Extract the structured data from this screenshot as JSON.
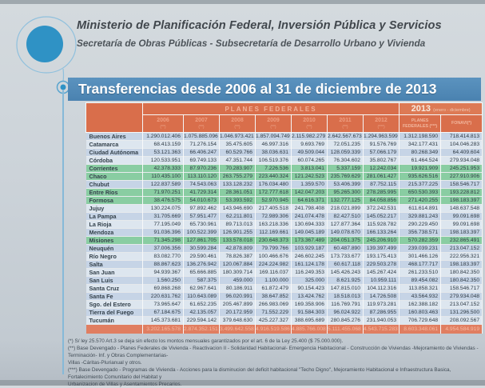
{
  "header": {
    "ministry": "Ministerio de Planificación Federal, Inversión Pública y Servicios",
    "secretariat": "Secretaría de Obras Públicas - Subsecretaría de Desarrollo Urbano y Vivienda"
  },
  "banner": {
    "title": "Transferencias desde 2006 al 31 de diciembre de 2013"
  },
  "colors": {
    "banner_blue": "#4a82b0",
    "table_header_salmon": "#d96e4b",
    "highlight_green": "#89cda2",
    "stripe_blue": "#c6d4e6",
    "stripe_light": "#dde6ef",
    "total_row": "#e07e61",
    "logo_blue": "#2f92c5"
  },
  "table": {
    "group_federal": "PLANES FEDERALES",
    "group_2013_year": "2013",
    "group_2013_range": "(enero - diciembre)",
    "years": [
      {
        "label": "2006",
        "note": "(**)"
      },
      {
        "label": "2007",
        "note": "(**)"
      },
      {
        "label": "2008",
        "note": "(**)"
      },
      {
        "label": "2009",
        "note": "(**)"
      },
      {
        "label": "2010",
        "note": "(**)"
      },
      {
        "label": "2011",
        "note": "(**)"
      },
      {
        "label": "2012",
        "note": "(***)"
      }
    ],
    "cols_2013": [
      "PLANES FEDERALES (***)",
      "FONAVI(*)"
    ],
    "rows": [
      {
        "name": "Buenos Aires",
        "highlight": false,
        "values": [
          "1.290.012.406",
          "1.075.885.096",
          "1.046.973.421",
          "1.857.094.749",
          "2.115.982.279",
          "2.642.567.673",
          "1.294.963.599",
          "1.312.198.590",
          "718.414.813"
        ]
      },
      {
        "name": "Catamarca",
        "highlight": false,
        "values": [
          "68.413.159",
          "71.276.154",
          "35.475.605",
          "46.997.316",
          "9.693.769",
          "72.051.235",
          "91.576.769",
          "342.177.431",
          "104.046.283"
        ]
      },
      {
        "name": "Ciudad Autónoma",
        "highlight": false,
        "values": [
          "53.121.363",
          "66.406.247",
          "60.529.766",
          "38.036.631",
          "49.509.044",
          "128.059.339",
          "57.066.179",
          "80.268.349",
          "64.409.604"
        ]
      },
      {
        "name": "Córdoba",
        "highlight": false,
        "values": [
          "120.533.951",
          "69.749.133",
          "47.351.744",
          "106.519.376",
          "60.074.265",
          "76.304.602",
          "35.802.767",
          "61.464.524",
          "279.934.048"
        ]
      },
      {
        "name": "Corrientes",
        "highlight": true,
        "values": [
          "42.378.333",
          "87.970.236",
          "70.283.907",
          "7.226.536",
          "3.813.041",
          "5.337.159",
          "12.242.034",
          "19.921.909",
          "245.251.953"
        ]
      },
      {
        "name": "Chaco",
        "highlight": true,
        "values": [
          "110.435.100",
          "113.110.120",
          "263.755.279",
          "223.440.324",
          "121.242.523",
          "235.769.629",
          "281.061.427",
          "935.626.516",
          "227.910.906"
        ]
      },
      {
        "name": "Chubut",
        "highlight": false,
        "values": [
          "122.837.589",
          "74.543.063",
          "133.128.232",
          "176.034.480",
          "1.359.570",
          "53.406.399",
          "87.752.115",
          "215.377.225",
          "158.546.717"
        ]
      },
      {
        "name": "Entre Ríos",
        "highlight": true,
        "values": [
          "71.970.251",
          "41.729.314",
          "28.361.051",
          "172.777.618",
          "142.047.203",
          "95.265.300",
          "278.285.995",
          "650.530.393",
          "193.228.812"
        ]
      },
      {
        "name": "Formosa",
        "highlight": true,
        "values": [
          "38.476.575",
          "54.010.673",
          "53.393.592",
          "52.970.945",
          "64.616.371",
          "132.777.125",
          "84.058.856",
          "271.420.255",
          "198.183.397"
        ]
      },
      {
        "name": "Jujuy",
        "highlight": false,
        "values": [
          "130.224.075",
          "97.892.462",
          "143.946.690",
          "217.405.518",
          "241.798.408",
          "218.021.899",
          "372.242.531",
          "611.614.891",
          "148.637.548"
        ]
      },
      {
        "name": "La Pampa",
        "highlight": false,
        "values": [
          "31.705.669",
          "57.951.477",
          "62.211.801",
          "72.989.306",
          "241.074.478",
          "82.427.510",
          "145.052.217",
          "329.881.243",
          "99.091.698"
        ]
      },
      {
        "name": "La Rioja",
        "highlight": false,
        "values": [
          "77.195.049",
          "65.730.961",
          "89.713.013",
          "163.218.336",
          "130.694.333",
          "127.877.364",
          "115.928.782",
          "290.229.450",
          "99.091.698"
        ]
      },
      {
        "name": "Mendoza",
        "highlight": false,
        "values": [
          "91.036.396",
          "100.522.399",
          "126.901.255",
          "112.169.661",
          "149.045.189",
          "149.078.670",
          "166.133.264",
          "356.738.571",
          "198.183.397"
        ]
      },
      {
        "name": "Misiones",
        "highlight": true,
        "values": [
          "71.345.298",
          "127.861.705",
          "133.578.018",
          "230.648.373",
          "173.367.489",
          "204.051.375",
          "245.206.910",
          "570.282.359",
          "232.865.491"
        ]
      },
      {
        "name": "Neuquén",
        "highlight": false,
        "values": [
          "37.006.356",
          "30.599.284",
          "42.878.809",
          "79.799.766",
          "103.929.187",
          "60.487.890",
          "139.397.499",
          "239.039.231",
          "213.047.152"
        ]
      },
      {
        "name": "Río Negro",
        "highlight": false,
        "values": [
          "83.082.770",
          "29.590.461",
          "78.826.387",
          "100.466.676",
          "246.602.245",
          "173.733.677",
          "193.175.413",
          "301.466.126",
          "222.956.321"
        ]
      },
      {
        "name": "Salta",
        "highlight": false,
        "values": [
          "88.867.623",
          "136.276.942",
          "120.067.884",
          "224.224.982",
          "161.124.178",
          "60.617.118",
          "229.503.278",
          "468.177.717",
          "198.183.397"
        ]
      },
      {
        "name": "San Juan",
        "highlight": false,
        "values": [
          "94.939.367",
          "65.666.885",
          "180.309.714",
          "169.116.037",
          "116.249.353",
          "145.426.243",
          "145.267.424",
          "261.233.510",
          "180.842.350"
        ]
      },
      {
        "name": "San Luis",
        "highlight": false,
        "values": [
          "1.560.250",
          "587.375",
          "459.000",
          "1.100.000",
          "325.000",
          "8.621.925",
          "10.959.111",
          "89.454.082",
          "180.842.350"
        ]
      },
      {
        "name": "Santa Cruz",
        "highlight": false,
        "values": [
          "69.868.268",
          "62.967.641",
          "80.186.911",
          "61.872.479",
          "90.154.423",
          "147.815.010",
          "104.112.316",
          "113.858.321",
          "158.546.717"
        ]
      },
      {
        "name": "Santa Fe",
        "highlight": false,
        "values": [
          "220.631.762",
          "110.643.089",
          "96.020.991",
          "38.647.852",
          "13.424.762",
          "18.518.013",
          "14.726.508",
          "43.564.932",
          "279.934.048"
        ]
      },
      {
        "name": "Sgo. del Estero",
        "highlight": false,
        "values": [
          "73.965.647",
          "61.652.235",
          "205.467.899",
          "266.983.069",
          "169.358.906",
          "116.769.791",
          "119.973.281",
          "162.388.182",
          "213.047.152"
        ]
      },
      {
        "name": "Tierra del Fuego",
        "highlight": false,
        "values": [
          "67.184.675",
          "42.135.057",
          "20.172.959",
          "71.552.229",
          "91.584.303",
          "96.024.922",
          "87.286.955",
          "160.803.463",
          "131.296.500"
        ]
      },
      {
        "name": "Tucumán",
        "highlight": false,
        "values": [
          "145.373.681",
          "229.594.142",
          "379.648.630",
          "425.227.327",
          "388.695.689",
          "280.845.276",
          "231.940.053",
          "706.729.648",
          "208.092.567"
        ]
      }
    ],
    "total_values": [
      "3.202.165.578",
      "2.874.352.151",
      "3.499.642.558",
      "4.916.519.586",
      "4.885.766.008",
      "5.111.455.068",
      "4.543.715.283",
      "8.603.348.061",
      "4.954.584.919"
    ]
  },
  "footnotes": {
    "lines": [
      "(*) S/ ley 25.570 Art.3 se deja sin efecto los montos mensuales garantizados por el art. 6 de la Ley 25.400 ($ 75.000.000).",
      "(**) Base Devengado - Planes Federales de Vivienda - Reactivacion II - Solidaridad Habitacional- Emergencia Habitacional - Construcción de Viviendas -Mejoramiento de Viviendas - Terminación- Inf. y Obras Complementarias-",
      "Villas -Cáritas-Plurianual y otros.",
      "(***) Base Devengado - Programas de Vivienda - Acciones para la disminucion del deficit habitacional \"Techo Digno\", Mejoramiento Habitacional e Infraestructura Basica, Fortalecimiento Comunitario del Habitat y",
      "Urbanizacion de Villas y Asentamientos Precarios."
    ]
  }
}
